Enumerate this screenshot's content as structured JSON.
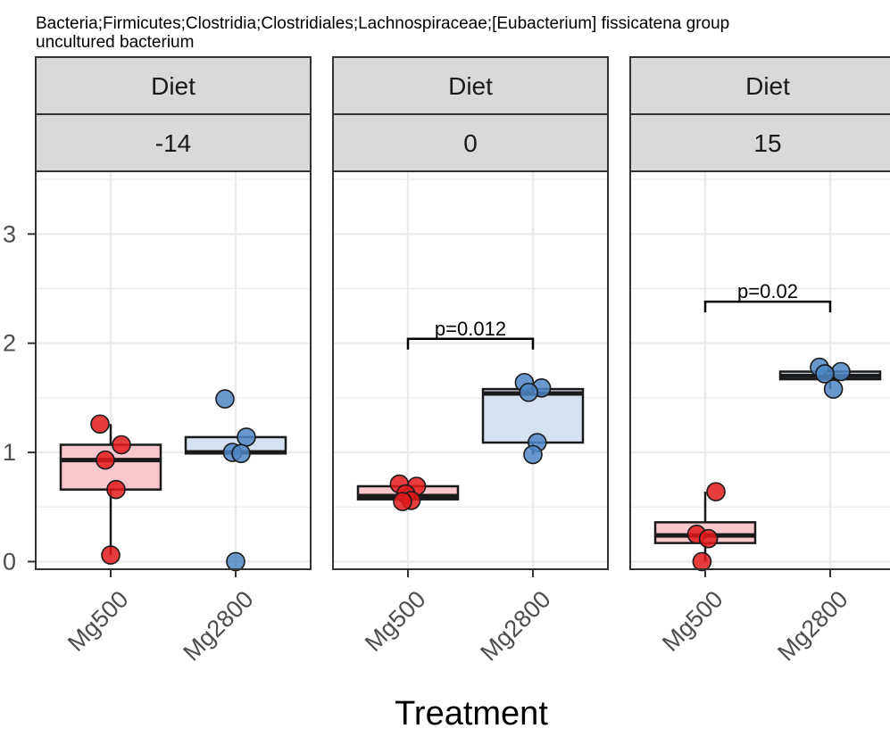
{
  "chart_data": {
    "type": "box",
    "title_lines": [
      "Bacteria;Firmicutes;Clostridia;Clostridiales;Lachnospiraceae;[Eubacterium] fissicatena group",
      "uncultured bacterium"
    ],
    "xlabel": "Treatment",
    "ylabel": "",
    "yticks": [
      "0",
      "1",
      "2",
      "3"
    ],
    "ylim": [
      -0.07,
      3.55
    ],
    "categories": [
      "Mg500",
      "Mg2800"
    ],
    "colors": {
      "Mg500": {
        "point": "#e31a1c",
        "box_fill": "#f8c8cc"
      },
      "Mg2800": {
        "point": "#4f86c6",
        "box_fill": "#d6e1ef"
      }
    },
    "grid": true,
    "panels": [
      {
        "strip_top": "Diet",
        "strip_bottom": "-14",
        "groups": [
          {
            "category": "Mg500",
            "q1": 0.66,
            "median": 0.93,
            "q3": 1.07,
            "whisker_low": 0.06,
            "whisker_high": 1.26,
            "points": [
              [
                -0.1,
                1.26
              ],
              [
                0.1,
                1.07
              ],
              [
                -0.05,
                0.93
              ],
              [
                0.05,
                0.66
              ],
              [
                0.0,
                0.06
              ]
            ]
          },
          {
            "category": "Mg2800",
            "q1": 0.99,
            "median": 1.0,
            "q3": 1.14,
            "whisker_low": 0.99,
            "whisker_high": 1.14,
            "points": [
              [
                -0.1,
                1.49
              ],
              [
                0.1,
                1.14
              ],
              [
                -0.03,
                1.0
              ],
              [
                0.05,
                0.99
              ],
              [
                0.0,
                0.0
              ]
            ]
          }
        ],
        "annotation": null
      },
      {
        "strip_top": "Diet",
        "strip_bottom": "0",
        "groups": [
          {
            "category": "Mg500",
            "q1": 0.57,
            "median": 0.6,
            "q3": 0.69,
            "whisker_low": 0.55,
            "whisker_high": 0.71,
            "points": [
              [
                -0.08,
                0.71
              ],
              [
                0.08,
                0.69
              ],
              [
                -0.02,
                0.62
              ],
              [
                0.03,
                0.56
              ],
              [
                -0.05,
                0.55
              ]
            ]
          },
          {
            "category": "Mg2800",
            "q1": 1.09,
            "median": 1.54,
            "q3": 1.58,
            "whisker_low": 0.98,
            "whisker_high": 1.64,
            "points": [
              [
                -0.08,
                1.64
              ],
              [
                0.08,
                1.59
              ],
              [
                -0.04,
                1.55
              ],
              [
                0.04,
                1.09
              ],
              [
                0.0,
                0.98
              ]
            ]
          }
        ],
        "annotation": {
          "label": "p=0.012",
          "y": 2.04
        }
      },
      {
        "strip_top": "Diet",
        "strip_bottom": "15",
        "groups": [
          {
            "category": "Mg500",
            "q1": 0.17,
            "median": 0.24,
            "q3": 0.36,
            "whisker_low": 0.0,
            "whisker_high": 0.64,
            "points": [
              [
                0.1,
                0.64
              ],
              [
                -0.08,
                0.25
              ],
              [
                0.03,
                0.21
              ],
              [
                -0.03,
                0.0
              ]
            ]
          },
          {
            "category": "Mg2800",
            "q1": 1.67,
            "median": 1.7,
            "q3": 1.74,
            "whisker_low": 1.58,
            "whisker_high": 1.78,
            "points": [
              [
                -0.1,
                1.78
              ],
              [
                0.1,
                1.74
              ],
              [
                -0.05,
                1.72
              ],
              [
                0.03,
                1.58
              ]
            ]
          }
        ],
        "annotation": {
          "label": "p=0.02",
          "y": 2.38
        }
      }
    ]
  }
}
